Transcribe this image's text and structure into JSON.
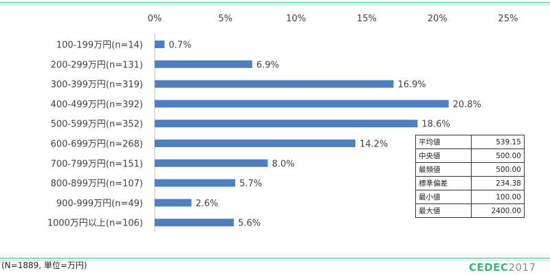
{
  "chart_data": {
    "type": "bar",
    "orientation": "horizontal",
    "categories": [
      "100-199万円(n=14)",
      "200-299万円(n=131)",
      "300-399万円(n=319)",
      "400-499万円(n=392)",
      "500-599万円(n=352)",
      "600-699万円(n=268)",
      "700-799万円(n=151)",
      "800-899万円(n=107)",
      "900-999万円(n=49)",
      "1000万円以上(n=106)"
    ],
    "values": [
      0.7,
      6.9,
      16.9,
      20.8,
      18.6,
      14.2,
      8.0,
      5.7,
      2.6,
      5.6
    ],
    "value_labels": [
      "0.7%",
      "6.9%",
      "16.9%",
      "20.8%",
      "18.6%",
      "14.2%",
      "8.0%",
      "5.7%",
      "2.6%",
      "5.6%"
    ],
    "x_ticks": [
      0,
      5,
      10,
      15,
      20,
      25
    ],
    "x_tick_labels": [
      "0%",
      "5%",
      "10%",
      "15%",
      "20%",
      "25%"
    ],
    "xlim": [
      0,
      25
    ],
    "x_axis_position": "top",
    "grid": false,
    "bar_color": "#4f7fc1",
    "title": "",
    "xlabel": "",
    "ylabel": ""
  },
  "stats_table": [
    {
      "label": "平均値",
      "value": "539.15"
    },
    {
      "label": "中央値",
      "value": "500.00"
    },
    {
      "label": "最頻値",
      "value": "500.00"
    },
    {
      "label": "標準偏差",
      "value": "234.38"
    },
    {
      "label": "最小値",
      "value": "100.00"
    },
    {
      "label": "最大値",
      "value": "2400.00"
    }
  ],
  "footnote": "(N=1889, 単位=万円)",
  "logo": {
    "brand": "CEDEC",
    "year": "2017",
    "brand_color": "#3bb37a",
    "year_color": "#8a8a8a"
  }
}
